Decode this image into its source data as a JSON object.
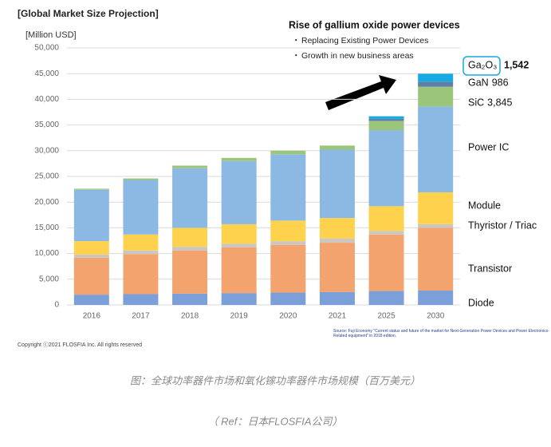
{
  "chart_data": {
    "type": "stacked_bar",
    "title": "[Global Market Size Projection]",
    "y_label": "[Million USD]",
    "annotation": {
      "title": "Rise of gallium oxide power devices",
      "bullets": [
        "Replacing Existing Power Devices",
        "Growth in new business areas"
      ]
    },
    "categories": [
      "2016",
      "2017",
      "2018",
      "2019",
      "2020",
      "2021",
      "2025",
      "2030"
    ],
    "series": [
      {
        "name": "Diode",
        "color": "#7b9fd8",
        "values": [
          2000,
          2100,
          2200,
          2300,
          2400,
          2500,
          2700,
          2800
        ]
      },
      {
        "name": "Transistor",
        "color": "#f2a36e",
        "values": [
          7200,
          7800,
          8400,
          8900,
          9300,
          9600,
          11000,
          12200
        ]
      },
      {
        "name": "Thyristor / Triac",
        "color": "#cbc6c0",
        "values": [
          600,
          700,
          700,
          700,
          700,
          800,
          700,
          700
        ]
      },
      {
        "name": "Module",
        "color": "#ffd24d",
        "values": [
          2600,
          3100,
          3700,
          3800,
          4000,
          4000,
          4800,
          6200
        ]
      },
      {
        "name": "Power IC",
        "color": "#8cb9e3",
        "values": [
          10000,
          10600,
          11600,
          12300,
          12900,
          13300,
          14800,
          16700
        ]
      },
      {
        "name": "SiC",
        "color": "#9bc57b",
        "values": [
          200,
          300,
          500,
          600,
          700,
          800,
          1800,
          3845
        ],
        "value_labels": [
          null,
          null,
          null,
          null,
          null,
          null,
          null,
          "3,845"
        ]
      },
      {
        "name": "GaN",
        "color": "#5e7fa8",
        "values": [
          0,
          0,
          0,
          0,
          0,
          0,
          400,
          986
        ],
        "value_labels": [
          null,
          null,
          null,
          null,
          null,
          null,
          null,
          "986"
        ]
      },
      {
        "name": "Ga₂O₃",
        "color": "#17a9e1",
        "values": [
          0,
          0,
          0,
          0,
          0,
          0,
          500,
          1542
        ],
        "value_labels": [
          null,
          null,
          null,
          null,
          null,
          null,
          null,
          "1,542"
        ]
      }
    ],
    "ylim": [
      0,
      50000
    ],
    "yticks": [
      0,
      {
        "value": 5000,
        "label": "5,000"
      },
      {
        "value": 10000,
        "label": "10,000"
      },
      {
        "value": 15000,
        "label": "15,000"
      },
      {
        "value": 20000,
        "label": "20,000"
      },
      {
        "value": 25000,
        "label": "25,000"
      },
      {
        "value": 30000,
        "label": "30,000"
      },
      {
        "value": 35000,
        "label": "35,000"
      },
      {
        "value": 40000,
        "label": "40,000"
      },
      {
        "value": 45000,
        "label": "45,000"
      },
      {
        "value": 50000,
        "label": "50,000"
      }
    ],
    "grid": true,
    "copyright": "Copyright ⓒ2021 FLOSFIA Inc. All rights reserved",
    "source": "Source: Fuji Economy \"Current status and future of the market for Next-Generation Power Devices and Power Electronics-Related equipment\" in 2018 edition."
  },
  "caption": "图：全球功率器件市场和氧化镓功率器件市场规模（百万美元）",
  "ref": "（ Ref：日本FLOSFIA公司）"
}
